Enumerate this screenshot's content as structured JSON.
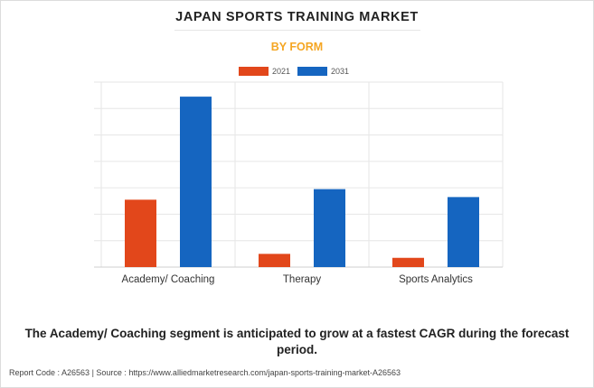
{
  "header": {
    "title": "JAPAN SPORTS TRAINING MARKET",
    "subtitle": "BY FORM"
  },
  "chart_data": {
    "type": "bar",
    "categories": [
      "Academy/ Coaching",
      "Therapy",
      "Sports Analytics"
    ],
    "series": [
      {
        "name": "2021",
        "color": "#e2471b",
        "values": [
          25.5,
          5.0,
          3.5
        ]
      },
      {
        "name": "2031",
        "color": "#1565c0",
        "values": [
          64.5,
          29.5,
          26.5
        ]
      }
    ],
    "ylim": [
      0,
      70
    ],
    "grid": true,
    "legend": "top-center",
    "xlabel": "",
    "ylabel": ""
  },
  "footer": {
    "note": "The Academy/ Coaching segment is anticipated to grow at a fastest CAGR during the forecast period.",
    "source": "Report Code : A26563  |  Source : https://www.alliedmarketresearch.com/japan-sports-training-market-A26563"
  }
}
